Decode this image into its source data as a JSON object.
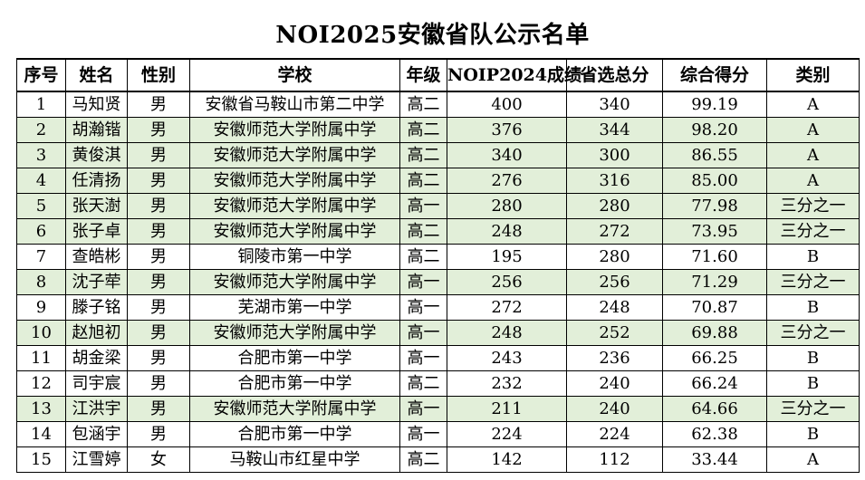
{
  "title": "NOI2025安徽省队公示名单",
  "columns": [
    "序号",
    "姓名",
    "性别",
    "学校",
    "年级",
    "NOIP2024成绩",
    "省选总分",
    "综合得分",
    "类别"
  ],
  "rows": [
    {
      "no": "1",
      "name": "马知贤",
      "gender": "男",
      "school": "安徽省马鞍山市第二中学",
      "grade": "高二",
      "noip": "400",
      "provincial": "340",
      "composite": "99.19",
      "category": "A",
      "shaded": false
    },
    {
      "no": "2",
      "name": "胡瀚锴",
      "gender": "男",
      "school": "安徽师范大学附属中学",
      "grade": "高二",
      "noip": "376",
      "provincial": "344",
      "composite": "98.20",
      "category": "A",
      "shaded": true
    },
    {
      "no": "3",
      "name": "黄俊淇",
      "gender": "男",
      "school": "安徽师范大学附属中学",
      "grade": "高二",
      "noip": "340",
      "provincial": "300",
      "composite": "86.55",
      "category": "A",
      "shaded": true
    },
    {
      "no": "4",
      "name": "任清扬",
      "gender": "男",
      "school": "安徽师范大学附属中学",
      "grade": "高二",
      "noip": "276",
      "provincial": "316",
      "composite": "85.00",
      "category": "A",
      "shaded": true
    },
    {
      "no": "5",
      "name": "张天澍",
      "gender": "男",
      "school": "安徽师范大学附属中学",
      "grade": "高一",
      "noip": "280",
      "provincial": "280",
      "composite": "77.98",
      "category": "三分之一",
      "shaded": true
    },
    {
      "no": "6",
      "name": "张子卓",
      "gender": "男",
      "school": "安徽师范大学附属中学",
      "grade": "高二",
      "noip": "248",
      "provincial": "272",
      "composite": "73.95",
      "category": "三分之一",
      "shaded": true
    },
    {
      "no": "7",
      "name": "查皓彬",
      "gender": "男",
      "school": "铜陵市第一中学",
      "grade": "高二",
      "noip": "195",
      "provincial": "280",
      "composite": "71.60",
      "category": "B",
      "shaded": false
    },
    {
      "no": "8",
      "name": "沈子荦",
      "gender": "男",
      "school": "安徽师范大学附属中学",
      "grade": "高一",
      "noip": "256",
      "provincial": "256",
      "composite": "71.29",
      "category": "三分之一",
      "shaded": true
    },
    {
      "no": "9",
      "name": "滕子铭",
      "gender": "男",
      "school": "芜湖市第一中学",
      "grade": "高一",
      "noip": "272",
      "provincial": "248",
      "composite": "70.87",
      "category": "B",
      "shaded": false
    },
    {
      "no": "10",
      "name": "赵旭初",
      "gender": "男",
      "school": "安徽师范大学附属中学",
      "grade": "高一",
      "noip": "248",
      "provincial": "252",
      "composite": "69.88",
      "category": "三分之一",
      "shaded": true
    },
    {
      "no": "11",
      "name": "胡金梁",
      "gender": "男",
      "school": "合肥市第一中学",
      "grade": "高一",
      "noip": "243",
      "provincial": "236",
      "composite": "66.25",
      "category": "B",
      "shaded": false
    },
    {
      "no": "12",
      "name": "司宇宸",
      "gender": "男",
      "school": "合肥市第一中学",
      "grade": "高二",
      "noip": "232",
      "provincial": "240",
      "composite": "66.24",
      "category": "B",
      "shaded": false
    },
    {
      "no": "13",
      "name": "江洪宇",
      "gender": "男",
      "school": "安徽师范大学附属中学",
      "grade": "高一",
      "noip": "211",
      "provincial": "240",
      "composite": "64.66",
      "category": "三分之一",
      "shaded": true
    },
    {
      "no": "14",
      "name": "包涵宇",
      "gender": "男",
      "school": "合肥市第一中学",
      "grade": "高一",
      "noip": "224",
      "provincial": "224",
      "composite": "62.38",
      "category": "B",
      "shaded": false
    },
    {
      "no": "15",
      "name": "江雪婷",
      "gender": "女",
      "school": "马鞍山市红星中学",
      "grade": "高二",
      "noip": "142",
      "provincial": "112",
      "composite": "33.44",
      "category": "A",
      "shaded": false
    }
  ],
  "colors": {
    "shaded_row": "#e2efd9",
    "border": "#000000"
  }
}
